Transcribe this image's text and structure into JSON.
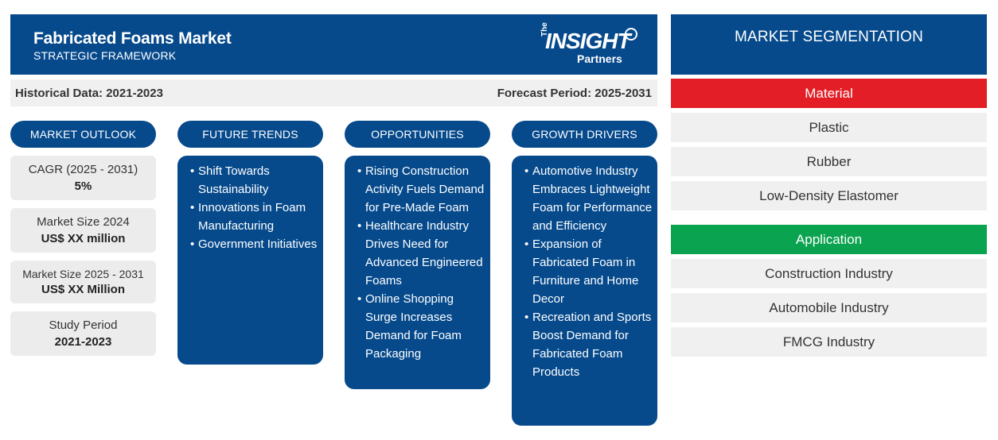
{
  "header": {
    "title": "Fabricated Foams Market",
    "subtitle": "STRATEGIC FRAMEWORK",
    "logo": {
      "the": "The",
      "insight": "INSIGHT",
      "partners": "Partners"
    }
  },
  "periods": {
    "historical": "Historical Data: 2021-2023",
    "forecast": "Forecast Period: 2025-2031"
  },
  "market_outlook": {
    "title": "MARKET OUTLOOK",
    "stats": [
      {
        "label": "CAGR (2025 - 2031)",
        "value": "5%"
      },
      {
        "label": "Market Size 2024",
        "value": "US$ XX million"
      },
      {
        "label": "Market Size 2025 - 2031",
        "value": "US$ XX Million"
      },
      {
        "label": "Study Period",
        "value": "2021-2023"
      }
    ]
  },
  "future_trends": {
    "title": "FUTURE TRENDS",
    "items": [
      "Shift Towards Sustainability",
      "Innovations in Foam Manufacturing",
      "Government Initiatives"
    ]
  },
  "opportunities": {
    "title": "OPPORTUNITIES",
    "items": [
      "Rising Construction Activity Fuels Demand for Pre-Made Foam",
      "Healthcare Industry Drives Need for Advanced Engineered Foams",
      "Online Shopping Surge Increases Demand for Foam Packaging"
    ]
  },
  "growth_drivers": {
    "title": "GROWTH DRIVERS",
    "items": [
      "Automotive Industry Embraces Lightweight Foam for Performance and Efficiency",
      "Expansion of Fabricated Foam in Furniture and Home Decor",
      "Recreation and Sports Boost Demand for Fabricated Foam Products"
    ]
  },
  "segmentation": {
    "title": "MARKET SEGMENTATION",
    "material": {
      "label": "Material",
      "color": "#e31e26",
      "items": [
        "Plastic",
        "Rubber",
        "Low-Density Elastomer"
      ]
    },
    "application": {
      "label": "Application",
      "color": "#0aa34f",
      "items": [
        "Construction Industry",
        "Automobile Industry",
        "FMCG Industry"
      ]
    }
  },
  "colors": {
    "primary": "#064a8c",
    "light_bg": "#f0f0f0"
  }
}
